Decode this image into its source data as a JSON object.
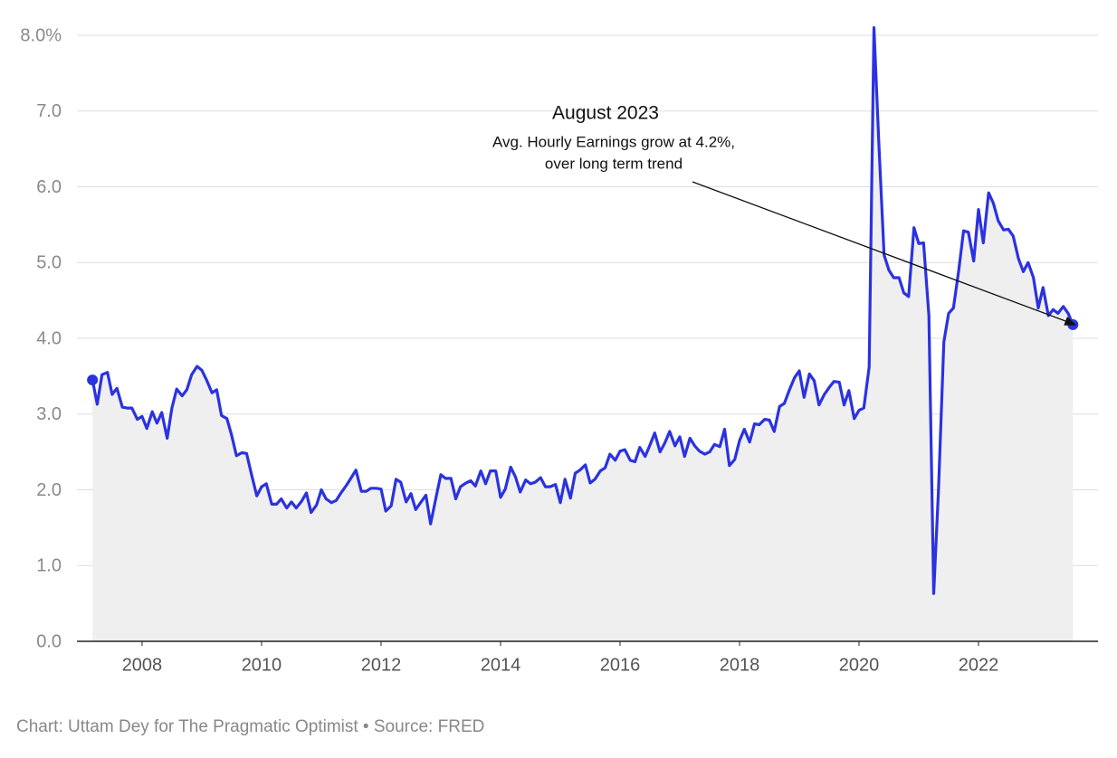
{
  "chart_data": {
    "type": "line",
    "x": [
      2007.17,
      2007.25,
      2007.33,
      2007.42,
      2007.5,
      2007.58,
      2007.67,
      2007.75,
      2007.83,
      2007.92,
      2008.0,
      2008.08,
      2008.17,
      2008.25,
      2008.33,
      2008.42,
      2008.5,
      2008.58,
      2008.67,
      2008.75,
      2008.83,
      2008.92,
      2009.0,
      2009.08,
      2009.17,
      2009.25,
      2009.33,
      2009.42,
      2009.5,
      2009.58,
      2009.67,
      2009.75,
      2009.83,
      2009.92,
      2010.0,
      2010.08,
      2010.17,
      2010.25,
      2010.33,
      2010.42,
      2010.5,
      2010.58,
      2010.67,
      2010.75,
      2010.83,
      2010.92,
      2011.0,
      2011.08,
      2011.17,
      2011.25,
      2011.33,
      2011.42,
      2011.5,
      2011.58,
      2011.67,
      2011.75,
      2011.83,
      2011.92,
      2012.0,
      2012.08,
      2012.17,
      2012.25,
      2012.33,
      2012.42,
      2012.5,
      2012.58,
      2012.67,
      2012.75,
      2012.83,
      2012.92,
      2013.0,
      2013.08,
      2013.17,
      2013.25,
      2013.33,
      2013.42,
      2013.5,
      2013.58,
      2013.67,
      2013.75,
      2013.83,
      2013.92,
      2014.0,
      2014.08,
      2014.17,
      2014.25,
      2014.33,
      2014.42,
      2014.5,
      2014.58,
      2014.67,
      2014.75,
      2014.83,
      2014.92,
      2015.0,
      2015.08,
      2015.17,
      2015.25,
      2015.33,
      2015.42,
      2015.5,
      2015.58,
      2015.67,
      2015.75,
      2015.83,
      2015.92,
      2016.0,
      2016.08,
      2016.17,
      2016.25,
      2016.33,
      2016.42,
      2016.5,
      2016.58,
      2016.67,
      2016.75,
      2016.83,
      2016.92,
      2017.0,
      2017.08,
      2017.17,
      2017.25,
      2017.33,
      2017.42,
      2017.5,
      2017.58,
      2017.67,
      2017.75,
      2017.83,
      2017.92,
      2018.0,
      2018.08,
      2018.17,
      2018.25,
      2018.33,
      2018.42,
      2018.5,
      2018.58,
      2018.67,
      2018.75,
      2018.83,
      2018.92,
      2019.0,
      2019.08,
      2019.17,
      2019.25,
      2019.33,
      2019.42,
      2019.5,
      2019.58,
      2019.67,
      2019.75,
      2019.83,
      2019.92,
      2020.0,
      2020.08,
      2020.17,
      2020.25,
      2020.33,
      2020.42,
      2020.5,
      2020.58,
      2020.67,
      2020.75,
      2020.83,
      2020.92,
      2021.0,
      2021.08,
      2021.17,
      2021.25,
      2021.33,
      2021.42,
      2021.5,
      2021.58,
      2021.67,
      2021.75,
      2021.83,
      2021.92,
      2022.0,
      2022.08,
      2022.17,
      2022.25,
      2022.33,
      2022.42,
      2022.5,
      2022.58,
      2022.67,
      2022.75,
      2022.83,
      2022.92,
      2023.0,
      2023.08,
      2023.17,
      2023.25,
      2023.33,
      2023.42,
      2023.5,
      2023.58
    ],
    "values": [
      3.45,
      3.13,
      3.52,
      3.55,
      3.26,
      3.34,
      3.09,
      3.08,
      3.08,
      2.93,
      2.97,
      2.81,
      3.03,
      2.88,
      3.02,
      2.68,
      3.08,
      3.33,
      3.24,
      3.32,
      3.52,
      3.63,
      3.58,
      3.45,
      3.28,
      3.32,
      2.98,
      2.94,
      2.72,
      2.45,
      2.49,
      2.48,
      2.21,
      1.92,
      2.04,
      2.08,
      1.81,
      1.81,
      1.88,
      1.76,
      1.84,
      1.76,
      1.85,
      1.96,
      1.7,
      1.8,
      2.0,
      1.88,
      1.83,
      1.86,
      1.96,
      2.06,
      2.16,
      2.26,
      1.98,
      1.98,
      2.02,
      2.02,
      2.01,
      1.72,
      1.79,
      2.14,
      2.1,
      1.84,
      1.95,
      1.74,
      1.84,
      1.93,
      1.55,
      1.9,
      2.2,
      2.15,
      2.15,
      1.88,
      2.04,
      2.09,
      2.12,
      2.05,
      2.25,
      2.08,
      2.25,
      2.25,
      1.9,
      2.01,
      2.3,
      2.17,
      1.97,
      2.13,
      2.08,
      2.1,
      2.16,
      2.04,
      2.04,
      2.07,
      1.83,
      2.14,
      1.89,
      2.22,
      2.26,
      2.33,
      2.09,
      2.14,
      2.25,
      2.29,
      2.47,
      2.39,
      2.51,
      2.53,
      2.39,
      2.37,
      2.56,
      2.44,
      2.59,
      2.75,
      2.5,
      2.62,
      2.77,
      2.58,
      2.7,
      2.44,
      2.68,
      2.58,
      2.51,
      2.47,
      2.5,
      2.6,
      2.57,
      2.8,
      2.32,
      2.4,
      2.65,
      2.8,
      2.63,
      2.87,
      2.86,
      2.93,
      2.92,
      2.77,
      3.1,
      3.14,
      3.31,
      3.48,
      3.57,
      3.22,
      3.53,
      3.44,
      3.12,
      3.26,
      3.35,
      3.43,
      3.42,
      3.12,
      3.31,
      2.94,
      3.05,
      3.08,
      3.62,
      8.1,
      6.6,
      5.1,
      4.9,
      4.8,
      4.8,
      4.6,
      4.55,
      5.46,
      5.25,
      5.26,
      4.3,
      0.63,
      2.0,
      3.95,
      4.33,
      4.4,
      4.9,
      5.42,
      5.4,
      5.02,
      5.7,
      5.26,
      5.92,
      5.78,
      5.55,
      5.43,
      5.44,
      5.35,
      5.05,
      4.88,
      5.0,
      4.8,
      4.4,
      4.67,
      4.3,
      4.38,
      4.33,
      4.42,
      4.33,
      4.18
    ],
    "color": "#2b32e0",
    "area_color": "#efefef",
    "xlim": [
      2006.91,
      2024.0
    ],
    "xticks": [
      2008,
      2010,
      2012,
      2014,
      2016,
      2018,
      2020,
      2022
    ],
    "ylim": [
      0,
      8
    ],
    "yticks": [
      {
        "value": 0,
        "label": "0.0"
      },
      {
        "value": 1,
        "label": "1.0"
      },
      {
        "value": 2,
        "label": "2.0"
      },
      {
        "value": 3,
        "label": "3.0"
      },
      {
        "value": 4,
        "label": "4.0"
      },
      {
        "value": 5,
        "label": "5.0"
      },
      {
        "value": 6,
        "label": "6.0"
      },
      {
        "value": 7,
        "label": "7.0"
      },
      {
        "value": 8,
        "label": "8.0%"
      }
    ],
    "grid": true,
    "annotation": {
      "title": "August 2023",
      "text": [
        "Avg. Hourly Earnings grow at 4.2%,",
        "over long term trend"
      ]
    },
    "source": "Chart: Uttam Dey for The Pragmatic Optimist • Source: FRED"
  }
}
